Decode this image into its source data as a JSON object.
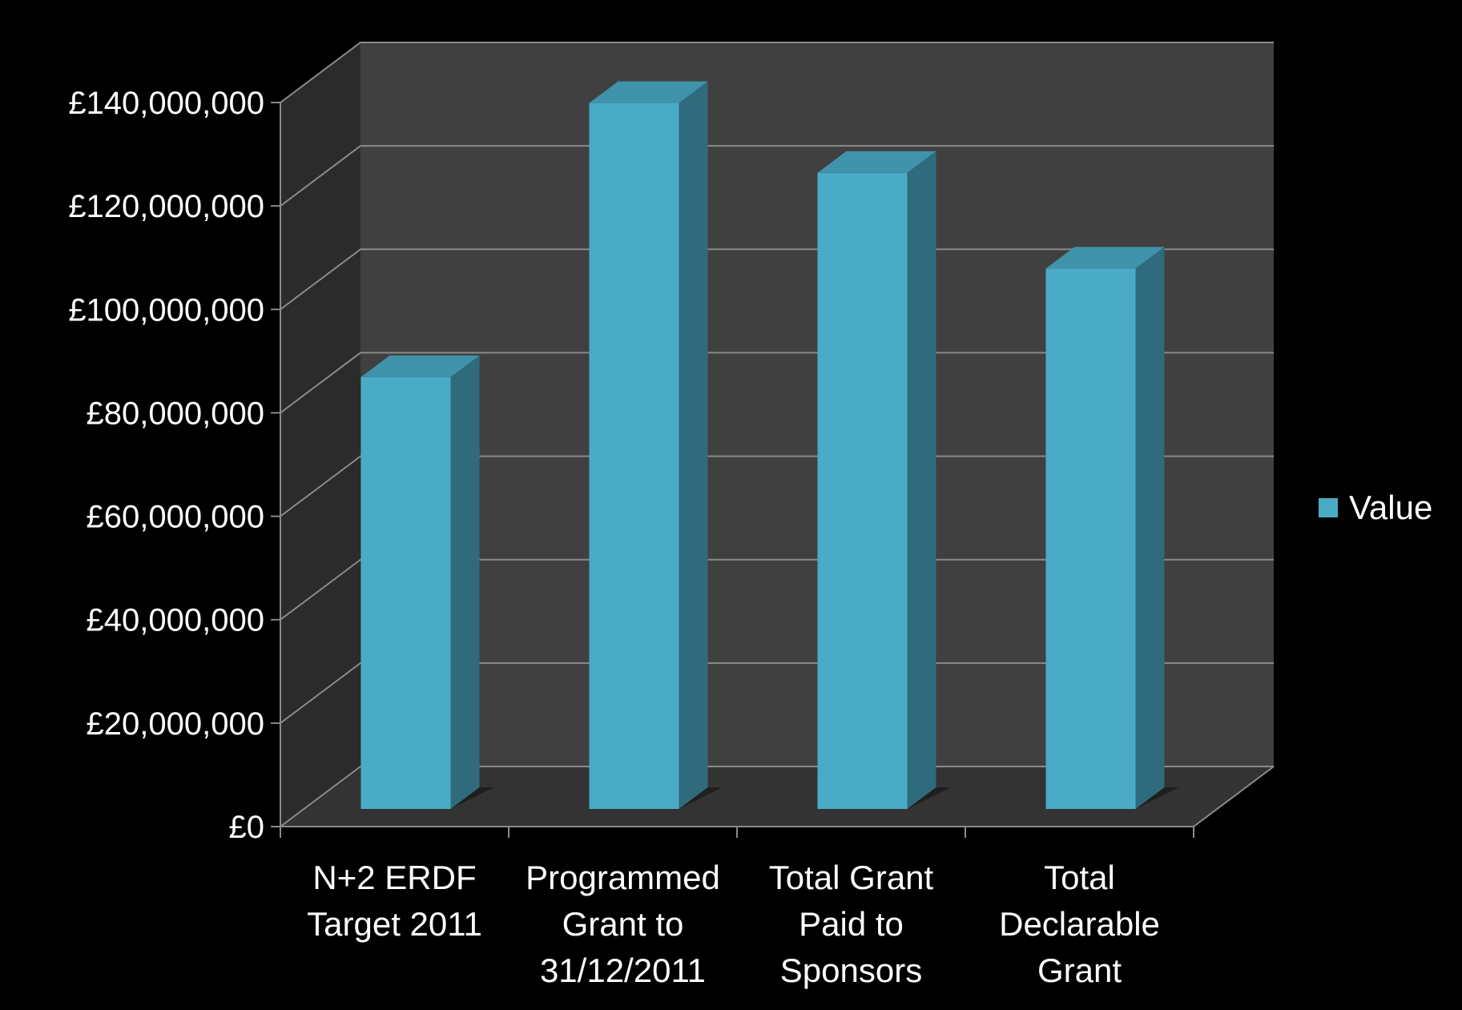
{
  "chart_data": {
    "type": "bar",
    "categories": [
      [
        "N+2 ERDF",
        "Target 2011"
      ],
      [
        "Programmed",
        "Grant to",
        "31/12/2011"
      ],
      [
        "Total Grant",
        "Paid to",
        "Sponsors"
      ],
      [
        "Total",
        "Declarable",
        "Grant"
      ]
    ],
    "series": [
      {
        "name": "Value",
        "values": [
          83500000,
          136500000,
          123000000,
          104500000
        ]
      }
    ],
    "yticks": [
      0,
      20000000,
      40000000,
      60000000,
      80000000,
      100000000,
      120000000,
      140000000
    ],
    "ytick_labels": [
      "£0",
      "£20,000,000",
      "£40,000,000",
      "£60,000,000",
      "£80,000,000",
      "£100,000,000",
      "£120,000,000",
      "£140,000,000"
    ],
    "ylim": [
      0,
      140000000
    ],
    "title": "",
    "xlabel": "",
    "ylabel": "",
    "grid": true,
    "legend_position": "right",
    "colors": {
      "bar_front": "#4aabc6",
      "bar_side": "#2f6b7c",
      "bar_top": "#3f93ab",
      "back_wall": "#404040",
      "side_wall": "#2b2b2b",
      "floor": "#333333",
      "gridline": "#8a8a8a"
    }
  }
}
